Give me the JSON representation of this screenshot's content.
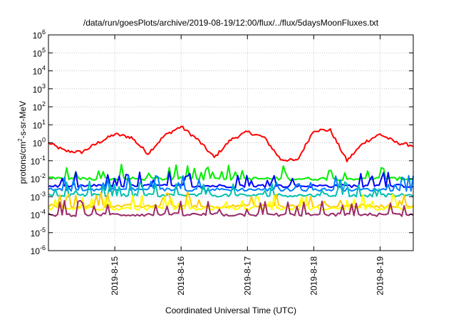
{
  "chart_data": {
    "type": "line",
    "title": "/data/run/goesPlots/archive/2019-08-19/12:00/flux/../flux/5daysMoonFluxes.txt",
    "xlabel": "Coordinated Universal Time (UTC)",
    "ylabel": "protons/cm²-s-sr-MeV",
    "ylabel_parts": {
      "a": "protons/cm",
      "sup": "2",
      "b": "-s-sr-MeV"
    },
    "yscale": "log",
    "ylim": [
      1e-06,
      1000000.0
    ],
    "yticks": [
      {
        "value": 1e-06,
        "base": "10",
        "exp": "-6"
      },
      {
        "value": 1e-05,
        "base": "10",
        "exp": "-5"
      },
      {
        "value": 0.0001,
        "base": "10",
        "exp": "-4"
      },
      {
        "value": 0.001,
        "base": "10",
        "exp": "-3"
      },
      {
        "value": 0.01,
        "base": "10",
        "exp": "-2"
      },
      {
        "value": 0.1,
        "base": "10",
        "exp": "-1"
      },
      {
        "value": 1.0,
        "base": "10",
        "exp": "0"
      },
      {
        "value": 10.0,
        "base": "10",
        "exp": "1"
      },
      {
        "value": 100.0,
        "base": "10",
        "exp": "2"
      },
      {
        "value": 1000.0,
        "base": "10",
        "exp": "3"
      },
      {
        "value": 10000.0,
        "base": "10",
        "exp": "4"
      },
      {
        "value": 100000.0,
        "base": "10",
        "exp": "5"
      },
      {
        "value": 1000000.0,
        "base": "10",
        "exp": "6"
      }
    ],
    "xlim": [
      "2019-08-14 00:00",
      "2019-08-19 12:00"
    ],
    "xticks": [
      "2019-8-15",
      "2019-8-16",
      "2019-8-17",
      "2019-8-18",
      "2019-8-19"
    ],
    "grid": true,
    "series": [
      {
        "color": "#ff0000",
        "x": [
          "2019-08-14 00:00",
          "2019-08-14 06:00",
          "2019-08-14 12:00",
          "2019-08-14 18:00",
          "2019-08-15 00:00",
          "2019-08-15 06:00",
          "2019-08-15 12:00",
          "2019-08-15 18:00",
          "2019-08-16 00:00",
          "2019-08-16 06:00",
          "2019-08-16 12:00",
          "2019-08-16 18:00",
          "2019-08-17 00:00",
          "2019-08-17 06:00",
          "2019-08-17 12:00",
          "2019-08-17 18:00",
          "2019-08-18 00:00",
          "2019-08-18 06:00",
          "2019-08-18 12:00",
          "2019-08-18 18:00",
          "2019-08-19 00:00",
          "2019-08-19 06:00",
          "2019-08-19 12:00"
        ],
        "y": [
          1.0,
          0.35,
          0.3,
          1.0,
          3.0,
          2.0,
          0.25,
          2.5,
          8.0,
          1.5,
          0.15,
          1.5,
          4.0,
          2.0,
          0.12,
          0.1,
          5.0,
          5.0,
          0.1,
          1.0,
          3.0,
          1.0,
          0.7
        ]
      },
      {
        "color": "#00ee00",
        "level": 0.01
      },
      {
        "color": "#0000ff",
        "level": 0.004
      },
      {
        "color": "#0080ff",
        "level": 0.0025
      },
      {
        "color": "#00c0b0",
        "level": 0.0012
      },
      {
        "color": "#ffcc00",
        "level": 0.0003
      },
      {
        "color": "#ffff00",
        "level": 0.00022
      },
      {
        "color": "#9a2c6a",
        "level": 0.0001
      }
    ]
  }
}
